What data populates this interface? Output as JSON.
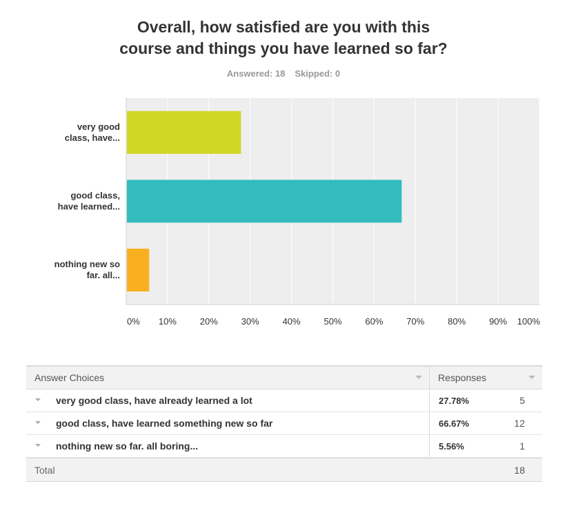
{
  "question": {
    "title_line1": "Overall, how satisfied are you with this",
    "title_line2": "course and things you have learned so far?",
    "answered": "Answered: 18",
    "skipped": "Skipped: 0"
  },
  "chart_data": {
    "type": "bar",
    "orientation": "horizontal",
    "categories": [
      "very good class, have...",
      "good class, have learned...",
      "nothing new so far. all..."
    ],
    "category_lines": [
      [
        "very good",
        "class, have..."
      ],
      [
        "good class,",
        "have learned..."
      ],
      [
        "nothing new so",
        "far. all..."
      ]
    ],
    "values": [
      27.78,
      66.67,
      5.56
    ],
    "colors": [
      "#d1d627",
      "#33bcbe",
      "#f8b020"
    ],
    "xlim": [
      0,
      100
    ],
    "x_ticks": [
      "0%",
      "10%",
      "20%",
      "30%",
      "40%",
      "50%",
      "60%",
      "70%",
      "80%",
      "90%",
      "100%"
    ],
    "grid": true,
    "plot_background": "#eeeeee",
    "grid_color": "#ffffff"
  },
  "table": {
    "header_answer": "Answer Choices",
    "header_responses": "Responses",
    "rows": [
      {
        "label": "very good class, have already learned a lot",
        "percent": "27.78%",
        "count": "5"
      },
      {
        "label": "good class, have learned something new so far",
        "percent": "66.67%",
        "count": "12"
      },
      {
        "label": "nothing new so far. all boring...",
        "percent": "5.56%",
        "count": "1"
      }
    ],
    "total_label": "Total",
    "total_count": "18"
  }
}
